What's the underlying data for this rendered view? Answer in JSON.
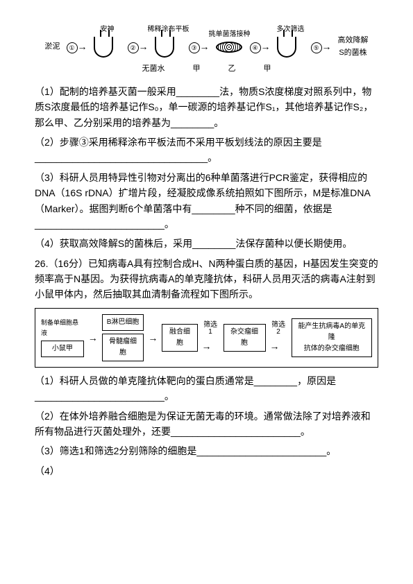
{
  "d1": {
    "left_text": "淤泥",
    "steps": [
      "①",
      "②",
      "③",
      "④",
      "⑤"
    ],
    "toplabels": [
      "",
      "安神",
      "稀释涂布平板",
      "挑单菌落接种",
      "多次筛选"
    ],
    "right_text": "高效降解\nS的菌株",
    "bottom": [
      "无菌水",
      "甲",
      "乙",
      "甲"
    ]
  },
  "q1": {
    "p1": "（1）配制的培养基灭菌一般采用________法，物质S浓度梯度对照系列中，物质S浓度最低的培养基记作S₀，单一碳源的培养基记作S₁，其他培养基记作S₂，那么甲、乙分别采用的培养基为________。",
    "p2": "（2）步骤③采用稀释涂布平板法而不采用平板划线法的原因主要是________________________________。",
    "p3": "（3）科研人员用特异性引物对分离出的6种单菌落进行PCR鉴定，获得相应的DNA（16S rDNA）扩增片段，经凝胶成像系统拍照如下图所示，M是标准DNA（Marker）。据图判断6个单菌落中有________种不同的细菌，依据是________________________。",
    "p4": "（4）获取高效降解S的菌株后，采用________法保存菌种以便长期使用。",
    "p5": "26.（16分）已知病毒A具有控制合成H、N两种蛋白质的基因，H基因发生突变的频率高于N基因。为获得抗病毒A的单克隆抗体，科研人员用灭活的病毒A注射到小鼠甲体内，然后抽取其血清制备流程如下图所示。"
  },
  "d2": {
    "label1": "制备单细胞悬液",
    "mouse": "小鼠甲",
    "bcell": "B淋巴细胞",
    "bonemarrow": "骨髓瘤细胞",
    "fused": "融合细胞",
    "screen1": "筛选1",
    "hybrid": "杂交瘤细胞",
    "screen2": "筛选2",
    "final": "能产生抗病毒A的单克隆\n抗体的杂交瘤细胞"
  },
  "q2": {
    "p1": "（1）科研人员做的单克隆抗体靶向的蛋白质通常是________，原因是________________________。",
    "p2": "（2）在体外培养融合细胞是为保证无菌无毒的环境。通常做法除了对培养液和所有物品进行灭菌处理外，还要________________________。",
    "p3": "（3）筛选1和筛选2分别筛除的细胞是________________________。",
    "p4": "（4）"
  }
}
